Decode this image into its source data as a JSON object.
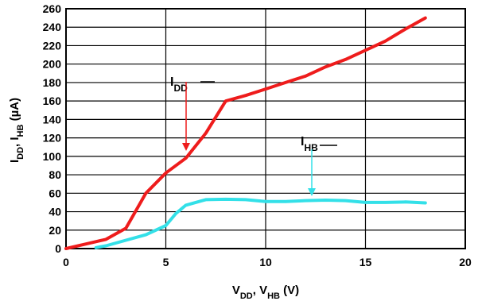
{
  "chart_data": {
    "type": "line",
    "title": "",
    "xlabel": {
      "main": "V",
      "sub1": "DD",
      "mid": ", V",
      "sub2": "HB",
      "unit": " (V)"
    },
    "ylabel": {
      "main": "I",
      "sub1": "DD",
      "mid": ", I",
      "sub2": "HB",
      "unit": " (µA)"
    },
    "xlim": [
      0,
      20
    ],
    "ylim": [
      0,
      260
    ],
    "x_ticks": [
      0,
      5,
      10,
      15,
      20
    ],
    "y_ticks": [
      0,
      20,
      40,
      60,
      80,
      100,
      120,
      140,
      160,
      180,
      200,
      220,
      240,
      260
    ],
    "grid": true,
    "series": [
      {
        "name": "IDD",
        "label_main": "I",
        "label_sub": "DD",
        "color": "#ee1c1c",
        "x": [
          0,
          1,
          2,
          3,
          4,
          5,
          6,
          7,
          8,
          9,
          10,
          11,
          12,
          13,
          14,
          15,
          16,
          17,
          18
        ],
        "y": [
          0,
          5,
          10,
          22,
          60,
          82,
          98,
          125,
          160,
          166,
          173,
          180,
          187,
          197,
          205,
          215,
          225,
          238,
          250
        ]
      },
      {
        "name": "IHB",
        "label_main": "I",
        "label_sub": "HB",
        "color": "#33e0e8",
        "x": [
          1.5,
          2,
          3,
          4,
          5,
          5.5,
          6,
          7,
          8,
          9,
          10,
          11,
          12,
          13,
          14,
          15,
          16,
          17,
          18
        ],
        "y": [
          1,
          3,
          9,
          15,
          25,
          38,
          47,
          53,
          53.5,
          53,
          51,
          51,
          52,
          52.5,
          52,
          50,
          50,
          50.5,
          49.5
        ]
      }
    ]
  }
}
